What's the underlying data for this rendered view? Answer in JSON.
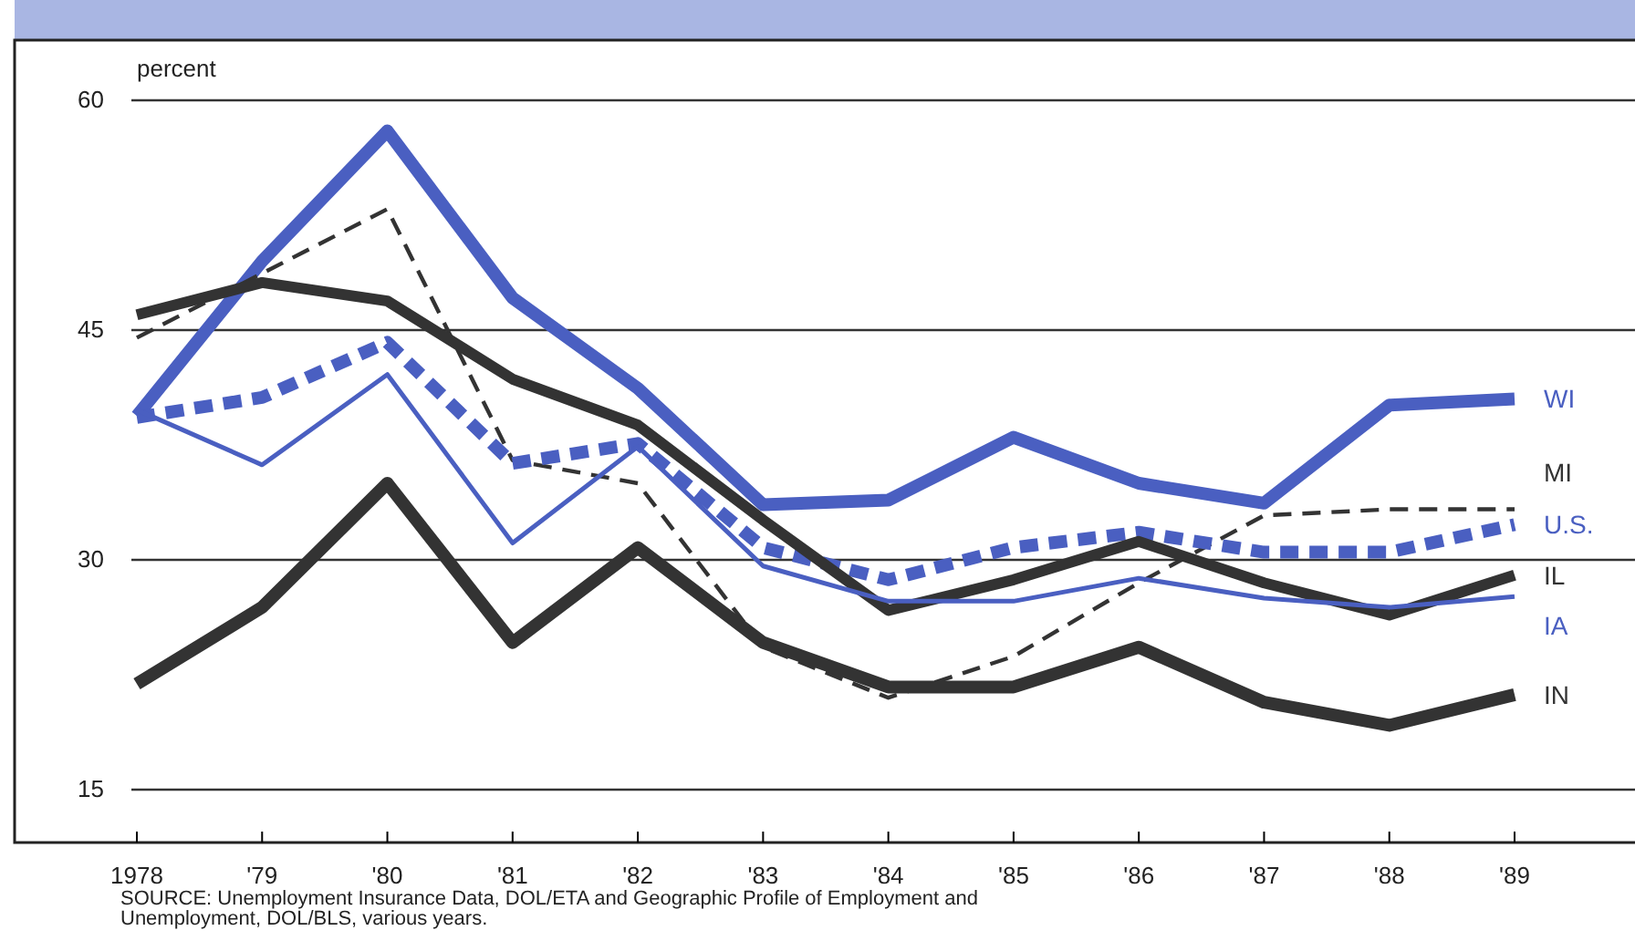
{
  "chart_data": {
    "type": "line",
    "ylabel": "percent",
    "categories": [
      "1978",
      "'79",
      "'80",
      "'81",
      "'82",
      "'83",
      "'84",
      "'85",
      "'86",
      "'87",
      "'88",
      "'89"
    ],
    "ylim": [
      15,
      60
    ],
    "yticks": [
      15,
      30,
      45,
      60
    ],
    "grid": "y",
    "series": [
      {
        "name": "WI",
        "color": "#4a5fc1",
        "line_style": "solid",
        "values": [
          39.4,
          49.5,
          58,
          47.1,
          41.2,
          33.6,
          33.9,
          38,
          35,
          33.7,
          40.1,
          40.5
        ]
      },
      {
        "name": "MI",
        "color": "#333333",
        "line_style": "dashed",
        "values": [
          44.5,
          48.7,
          52.9,
          36.5,
          35,
          24.3,
          21,
          23.7,
          28.5,
          32.9,
          33.3,
          33.3
        ]
      },
      {
        "name": "U.S.",
        "color": "#4a5fc1",
        "line_style": "dashed",
        "values": [
          39.3,
          40.6,
          44.2,
          36.3,
          37.6,
          30.8,
          28.7,
          30.8,
          31.8,
          30.5,
          30.5,
          32.3
        ]
      },
      {
        "name": "IL",
        "color": "#333333",
        "line_style": "solid",
        "values": [
          46,
          48.1,
          46.9,
          41.8,
          38.8,
          32.6,
          26.7,
          28.7,
          31.2,
          28.5,
          26.4,
          29
        ]
      },
      {
        "name": "IA",
        "color": "#4a5fc1",
        "line_style": "solid",
        "values": [
          39.8,
          36.2,
          42.1,
          31.1,
          37.4,
          29.6,
          27.3,
          27.3,
          28.8,
          27.5,
          26.9,
          27.6
        ]
      },
      {
        "name": "IN",
        "color": "#333333",
        "line_style": "solid",
        "values": [
          21.9,
          26.9,
          35,
          24.6,
          30.8,
          24.6,
          21.7,
          21.7,
          24.3,
          20.7,
          19.2,
          21.2
        ]
      }
    ],
    "annotations": [
      "SOURCE: Unemployment Insurance Data, DOL/ETA and Geographic Profile of Employment and Unemployment, DOL/BLS, various years."
    ]
  }
}
